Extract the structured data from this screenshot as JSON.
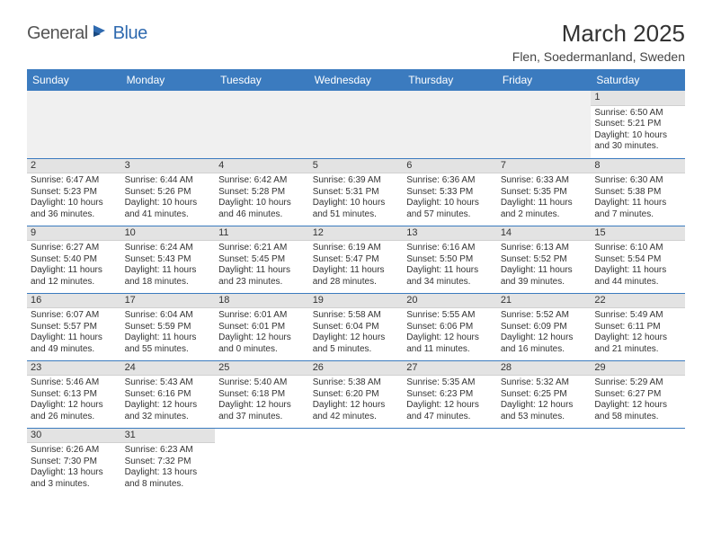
{
  "logo": {
    "text_a": "General",
    "text_b": "Blue"
  },
  "title": "March 2025",
  "location": "Flen, Soedermanland, Sweden",
  "colors": {
    "header_bg": "#3b7bbf",
    "header_text": "#ffffff",
    "daynum_bg": "#e3e3e3",
    "row_border": "#3b7bbf",
    "logo_blue": "#2f6aaf",
    "logo_dark": "#555555",
    "body_text": "#333333"
  },
  "weekdays": [
    "Sunday",
    "Monday",
    "Tuesday",
    "Wednesday",
    "Thursday",
    "Friday",
    "Saturday"
  ],
  "weeks": [
    [
      null,
      null,
      null,
      null,
      null,
      null,
      {
        "n": "1",
        "sunrise": "Sunrise: 6:50 AM",
        "sunset": "Sunset: 5:21 PM",
        "daylight": "Daylight: 10 hours and 30 minutes."
      }
    ],
    [
      {
        "n": "2",
        "sunrise": "Sunrise: 6:47 AM",
        "sunset": "Sunset: 5:23 PM",
        "daylight": "Daylight: 10 hours and 36 minutes."
      },
      {
        "n": "3",
        "sunrise": "Sunrise: 6:44 AM",
        "sunset": "Sunset: 5:26 PM",
        "daylight": "Daylight: 10 hours and 41 minutes."
      },
      {
        "n": "4",
        "sunrise": "Sunrise: 6:42 AM",
        "sunset": "Sunset: 5:28 PM",
        "daylight": "Daylight: 10 hours and 46 minutes."
      },
      {
        "n": "5",
        "sunrise": "Sunrise: 6:39 AM",
        "sunset": "Sunset: 5:31 PM",
        "daylight": "Daylight: 10 hours and 51 minutes."
      },
      {
        "n": "6",
        "sunrise": "Sunrise: 6:36 AM",
        "sunset": "Sunset: 5:33 PM",
        "daylight": "Daylight: 10 hours and 57 minutes."
      },
      {
        "n": "7",
        "sunrise": "Sunrise: 6:33 AM",
        "sunset": "Sunset: 5:35 PM",
        "daylight": "Daylight: 11 hours and 2 minutes."
      },
      {
        "n": "8",
        "sunrise": "Sunrise: 6:30 AM",
        "sunset": "Sunset: 5:38 PM",
        "daylight": "Daylight: 11 hours and 7 minutes."
      }
    ],
    [
      {
        "n": "9",
        "sunrise": "Sunrise: 6:27 AM",
        "sunset": "Sunset: 5:40 PM",
        "daylight": "Daylight: 11 hours and 12 minutes."
      },
      {
        "n": "10",
        "sunrise": "Sunrise: 6:24 AM",
        "sunset": "Sunset: 5:43 PM",
        "daylight": "Daylight: 11 hours and 18 minutes."
      },
      {
        "n": "11",
        "sunrise": "Sunrise: 6:21 AM",
        "sunset": "Sunset: 5:45 PM",
        "daylight": "Daylight: 11 hours and 23 minutes."
      },
      {
        "n": "12",
        "sunrise": "Sunrise: 6:19 AM",
        "sunset": "Sunset: 5:47 PM",
        "daylight": "Daylight: 11 hours and 28 minutes."
      },
      {
        "n": "13",
        "sunrise": "Sunrise: 6:16 AM",
        "sunset": "Sunset: 5:50 PM",
        "daylight": "Daylight: 11 hours and 34 minutes."
      },
      {
        "n": "14",
        "sunrise": "Sunrise: 6:13 AM",
        "sunset": "Sunset: 5:52 PM",
        "daylight": "Daylight: 11 hours and 39 minutes."
      },
      {
        "n": "15",
        "sunrise": "Sunrise: 6:10 AM",
        "sunset": "Sunset: 5:54 PM",
        "daylight": "Daylight: 11 hours and 44 minutes."
      }
    ],
    [
      {
        "n": "16",
        "sunrise": "Sunrise: 6:07 AM",
        "sunset": "Sunset: 5:57 PM",
        "daylight": "Daylight: 11 hours and 49 minutes."
      },
      {
        "n": "17",
        "sunrise": "Sunrise: 6:04 AM",
        "sunset": "Sunset: 5:59 PM",
        "daylight": "Daylight: 11 hours and 55 minutes."
      },
      {
        "n": "18",
        "sunrise": "Sunrise: 6:01 AM",
        "sunset": "Sunset: 6:01 PM",
        "daylight": "Daylight: 12 hours and 0 minutes."
      },
      {
        "n": "19",
        "sunrise": "Sunrise: 5:58 AM",
        "sunset": "Sunset: 6:04 PM",
        "daylight": "Daylight: 12 hours and 5 minutes."
      },
      {
        "n": "20",
        "sunrise": "Sunrise: 5:55 AM",
        "sunset": "Sunset: 6:06 PM",
        "daylight": "Daylight: 12 hours and 11 minutes."
      },
      {
        "n": "21",
        "sunrise": "Sunrise: 5:52 AM",
        "sunset": "Sunset: 6:09 PM",
        "daylight": "Daylight: 12 hours and 16 minutes."
      },
      {
        "n": "22",
        "sunrise": "Sunrise: 5:49 AM",
        "sunset": "Sunset: 6:11 PM",
        "daylight": "Daylight: 12 hours and 21 minutes."
      }
    ],
    [
      {
        "n": "23",
        "sunrise": "Sunrise: 5:46 AM",
        "sunset": "Sunset: 6:13 PM",
        "daylight": "Daylight: 12 hours and 26 minutes."
      },
      {
        "n": "24",
        "sunrise": "Sunrise: 5:43 AM",
        "sunset": "Sunset: 6:16 PM",
        "daylight": "Daylight: 12 hours and 32 minutes."
      },
      {
        "n": "25",
        "sunrise": "Sunrise: 5:40 AM",
        "sunset": "Sunset: 6:18 PM",
        "daylight": "Daylight: 12 hours and 37 minutes."
      },
      {
        "n": "26",
        "sunrise": "Sunrise: 5:38 AM",
        "sunset": "Sunset: 6:20 PM",
        "daylight": "Daylight: 12 hours and 42 minutes."
      },
      {
        "n": "27",
        "sunrise": "Sunrise: 5:35 AM",
        "sunset": "Sunset: 6:23 PM",
        "daylight": "Daylight: 12 hours and 47 minutes."
      },
      {
        "n": "28",
        "sunrise": "Sunrise: 5:32 AM",
        "sunset": "Sunset: 6:25 PM",
        "daylight": "Daylight: 12 hours and 53 minutes."
      },
      {
        "n": "29",
        "sunrise": "Sunrise: 5:29 AM",
        "sunset": "Sunset: 6:27 PM",
        "daylight": "Daylight: 12 hours and 58 minutes."
      }
    ],
    [
      {
        "n": "30",
        "sunrise": "Sunrise: 6:26 AM",
        "sunset": "Sunset: 7:30 PM",
        "daylight": "Daylight: 13 hours and 3 minutes."
      },
      {
        "n": "31",
        "sunrise": "Sunrise: 6:23 AM",
        "sunset": "Sunset: 7:32 PM",
        "daylight": "Daylight: 13 hours and 8 minutes."
      },
      null,
      null,
      null,
      null,
      null
    ]
  ]
}
